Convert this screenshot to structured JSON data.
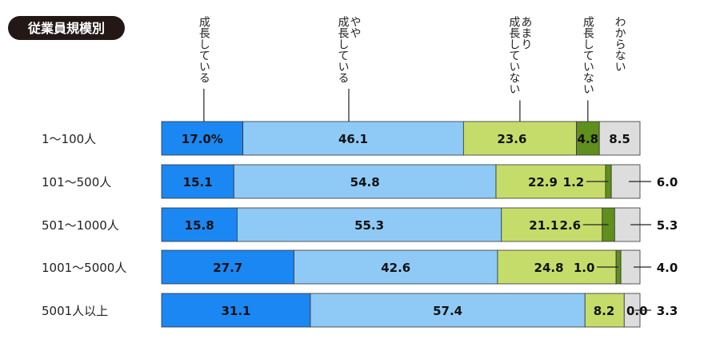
{
  "chart_data": {
    "type": "bar",
    "orientation": "horizontal",
    "stacked": true,
    "title": "従業員規模別",
    "categories": [
      "1〜100人",
      "101〜500人",
      "501〜1000人",
      "1001〜5000人",
      "5001人以上"
    ],
    "series": [
      {
        "name": "成長している",
        "color": "#1b87f2",
        "values": [
          17.0,
          15.1,
          15.8,
          27.7,
          31.1
        ]
      },
      {
        "name": "やや成長している",
        "color": "#8fcaf7",
        "values": [
          46.1,
          54.8,
          55.3,
          42.6,
          57.4
        ]
      },
      {
        "name": "あまり成長していない",
        "color": "#c6dc6a",
        "values": [
          23.6,
          22.9,
          21.1,
          24.8,
          8.2
        ]
      },
      {
        "name": "成長していない",
        "color": "#5f8f1c",
        "values": [
          4.8,
          1.2,
          2.6,
          1.0,
          0.0
        ]
      },
      {
        "name": "わからない",
        "color": "#dddddd",
        "values": [
          8.5,
          6.0,
          5.3,
          4.0,
          3.3
        ]
      }
    ],
    "value_labels": [
      [
        "17.0%",
        "46.1",
        "23.6",
        "4.8",
        "8.5"
      ],
      [
        "15.1",
        "54.8",
        "22.9",
        "1.2",
        "6.0"
      ],
      [
        "15.8",
        "55.3",
        "21.1",
        "2.6",
        "5.3"
      ],
      [
        "27.7",
        "42.6",
        "24.8",
        "1.0",
        "4.0"
      ],
      [
        "31.1",
        "57.4",
        "8.2",
        "0.0",
        "3.3"
      ]
    ],
    "legend_placement": "top, vertical text above bars",
    "xlim": [
      0,
      100
    ],
    "grid": false
  }
}
